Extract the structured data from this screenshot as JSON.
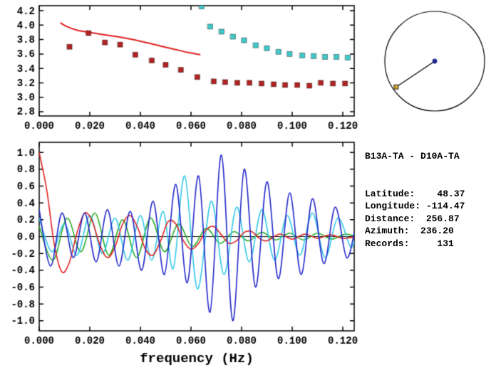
{
  "window": {
    "background": "#ffffff"
  },
  "station_info": {
    "pair": "B13A-TA - D10A-TA",
    "lines": [
      "Latitude:    48.37",
      "Longitude: -114.47",
      "Distance:  256.87",
      "Azimuth:  236.20",
      "Records:     131"
    ]
  },
  "azimuth_dial": {
    "azimuth_deg": 236.2,
    "circle_color": "#000000",
    "line_color": "#000000",
    "center_dot_color": "#202a8c",
    "end_marker_color": "#c9a227"
  },
  "chart_data": [
    {
      "id": "dispersion",
      "type": "scatter",
      "title": "",
      "xlabel": "",
      "ylabel": "",
      "xlim": [
        0,
        0.1245
      ],
      "ylim": [
        2.74,
        4.27
      ],
      "xticks": [
        0.0,
        0.02,
        0.04,
        0.06,
        0.08,
        0.1,
        0.12
      ],
      "xtick_labels": [
        "0.000",
        "0.020",
        "0.040",
        "0.060",
        "0.080",
        "0.100",
        "0.120"
      ],
      "yticks": [
        2.8,
        3.0,
        3.2,
        3.4,
        3.6,
        3.8,
        4.0,
        4.2
      ],
      "ytick_labels": [
        "2.8",
        "3.0",
        "3.2",
        "3.4",
        "3.6",
        "3.8",
        "4.0",
        "4.2"
      ],
      "series": [
        {
          "name": "reference-curve",
          "type": "line",
          "color": "#e02020",
          "width": 2,
          "points": [
            [
              0.0085,
              4.03
            ],
            [
              0.011,
              3.98
            ],
            [
              0.015,
              3.93
            ],
            [
              0.02,
              3.9
            ],
            [
              0.027,
              3.86
            ],
            [
              0.034,
              3.82
            ],
            [
              0.041,
              3.77
            ],
            [
              0.048,
              3.71
            ],
            [
              0.054,
              3.66
            ],
            [
              0.059,
              3.62
            ],
            [
              0.0635,
              3.59
            ]
          ]
        },
        {
          "name": "red-dispersion-squares",
          "type": "squares",
          "color": "#b22222",
          "points": [
            [
              0.012,
              3.7
            ],
            [
              0.0195,
              3.89
            ],
            [
              0.026,
              3.76
            ],
            [
              0.032,
              3.73
            ],
            [
              0.038,
              3.59
            ],
            [
              0.0445,
              3.51
            ],
            [
              0.05,
              3.45
            ],
            [
              0.056,
              3.38
            ],
            [
              0.0625,
              3.28
            ],
            [
              0.069,
              3.22
            ],
            [
              0.0735,
              3.21
            ],
            [
              0.0783,
              3.2
            ],
            [
              0.0831,
              3.2
            ],
            [
              0.0879,
              3.19
            ],
            [
              0.0927,
              3.18
            ],
            [
              0.0972,
              3.17
            ],
            [
              0.102,
              3.17
            ],
            [
              0.1068,
              3.16
            ],
            [
              0.1113,
              3.2
            ],
            [
              0.1161,
              3.19
            ],
            [
              0.1209,
              3.19
            ]
          ]
        },
        {
          "name": "cyan-dispersion-squares",
          "type": "squares",
          "color": "#3fc8c8",
          "points": [
            [
              0.0642,
              4.26
            ],
            [
              0.0676,
              3.98
            ],
            [
              0.0721,
              3.91
            ],
            [
              0.0766,
              3.84
            ],
            [
              0.081,
              3.79
            ],
            [
              0.0856,
              3.72
            ],
            [
              0.09,
              3.68
            ],
            [
              0.0946,
              3.63
            ],
            [
              0.099,
              3.6
            ],
            [
              0.104,
              3.58
            ],
            [
              0.1085,
              3.57
            ],
            [
              0.113,
              3.56
            ],
            [
              0.1175,
              3.56
            ],
            [
              0.122,
              3.55
            ]
          ]
        }
      ]
    },
    {
      "id": "waveforms",
      "type": "line",
      "title": "",
      "xlabel": "frequency (Hz)",
      "ylabel": "",
      "xlim": [
        0,
        0.1245
      ],
      "ylim": [
        -1.12,
        1.12
      ],
      "zero_line": true,
      "xticks": [
        0.0,
        0.02,
        0.04,
        0.06,
        0.08,
        0.1,
        0.12
      ],
      "xtick_labels": [
        "0.000",
        "0.020",
        "0.040",
        "0.060",
        "0.080",
        "0.100",
        "0.120"
      ],
      "yticks": [
        -1.0,
        -0.8,
        -0.6,
        -0.4,
        -0.2,
        0.0,
        0.2,
        0.4,
        0.6,
        0.8,
        1.0
      ],
      "ytick_labels": [
        "-1.0",
        "-0.8",
        "-0.6",
        "-0.4",
        "-0.2",
        "0.0",
        "0.2",
        "0.4",
        "0.6",
        "0.8",
        "1.0"
      ],
      "series": [
        {
          "name": "waveform-green",
          "type": "line",
          "color": "#1faa1f",
          "width": 1.5,
          "points": [
            [
              0.0,
              0.12
            ],
            [
              0.0055,
              -0.28
            ],
            [
              0.011,
              0.22
            ],
            [
              0.0165,
              -0.18
            ],
            [
              0.022,
              0.28
            ],
            [
              0.0275,
              -0.22
            ],
            [
              0.033,
              0.2
            ],
            [
              0.0385,
              -0.25
            ],
            [
              0.044,
              0.22
            ],
            [
              0.0495,
              -0.18
            ],
            [
              0.055,
              0.15
            ],
            [
              0.0605,
              -0.12
            ],
            [
              0.066,
              0.1
            ],
            [
              0.0715,
              -0.08
            ],
            [
              0.077,
              0.06
            ],
            [
              0.0825,
              -0.05
            ],
            [
              0.088,
              0.05
            ],
            [
              0.0935,
              -0.04
            ],
            [
              0.099,
              0.04
            ],
            [
              0.1045,
              -0.04
            ],
            [
              0.11,
              0.04
            ],
            [
              0.1155,
              -0.03
            ],
            [
              0.121,
              0.03
            ],
            [
              0.125,
              0.0
            ]
          ]
        },
        {
          "name": "waveform-cyan",
          "type": "line",
          "color": "#35c8e8",
          "width": 1.6,
          "points": [
            [
              0.0,
              0.22
            ],
            [
              0.005,
              -0.18
            ],
            [
              0.01,
              0.15
            ],
            [
              0.015,
              -0.22
            ],
            [
              0.02,
              0.25
            ],
            [
              0.025,
              -0.2
            ],
            [
              0.03,
              0.22
            ],
            [
              0.035,
              -0.28
            ],
            [
              0.04,
              0.25
            ],
            [
              0.0445,
              -0.28
            ],
            [
              0.049,
              0.3
            ],
            [
              0.053,
              -0.38
            ],
            [
              0.0575,
              0.72
            ],
            [
              0.0625,
              -0.62
            ],
            [
              0.068,
              0.42
            ],
            [
              0.073,
              -0.45
            ],
            [
              0.078,
              0.35
            ],
            [
              0.083,
              -0.3
            ],
            [
              0.088,
              0.32
            ],
            [
              0.093,
              -0.28
            ],
            [
              0.098,
              0.25
            ],
            [
              0.103,
              -0.22
            ],
            [
              0.108,
              0.28
            ],
            [
              0.113,
              -0.25
            ],
            [
              0.118,
              0.22
            ],
            [
              0.123,
              -0.12
            ],
            [
              0.125,
              0.0
            ]
          ]
        },
        {
          "name": "waveform-red",
          "type": "line",
          "color": "#e02020",
          "width": 1.6,
          "points": [
            [
              0.0,
              1.0
            ],
            [
              0.003,
              0.55
            ],
            [
              0.006,
              -0.1
            ],
            [
              0.009,
              -0.42
            ],
            [
              0.012,
              -0.3
            ],
            [
              0.015,
              0.05
            ],
            [
              0.018,
              0.28
            ],
            [
              0.021,
              0.18
            ],
            [
              0.024,
              -0.1
            ],
            [
              0.027,
              -0.25
            ],
            [
              0.03,
              -0.12
            ],
            [
              0.033,
              0.15
            ],
            [
              0.036,
              0.25
            ],
            [
              0.039,
              0.1
            ],
            [
              0.042,
              -0.15
            ],
            [
              0.045,
              -0.22
            ],
            [
              0.048,
              -0.05
            ],
            [
              0.051,
              0.18
            ],
            [
              0.054,
              0.15
            ],
            [
              0.057,
              -0.05
            ],
            [
              0.06,
              -0.15
            ],
            [
              0.063,
              -0.08
            ],
            [
              0.066,
              0.08
            ],
            [
              0.069,
              0.12
            ],
            [
              0.072,
              0.02
            ],
            [
              0.075,
              -0.08
            ],
            [
              0.078,
              -0.05
            ],
            [
              0.081,
              0.05
            ],
            [
              0.084,
              0.06
            ],
            [
              0.087,
              -0.02
            ],
            [
              0.09,
              -0.05
            ],
            [
              0.095,
              0.03
            ],
            [
              0.1,
              -0.03
            ],
            [
              0.105,
              0.03
            ],
            [
              0.11,
              -0.02
            ],
            [
              0.115,
              0.02
            ],
            [
              0.12,
              -0.02
            ],
            [
              0.125,
              0.0
            ]
          ]
        },
        {
          "name": "waveform-blue",
          "type": "line",
          "color": "#2026c8",
          "width": 1.6,
          "points": [
            [
              0.0,
              0.32
            ],
            [
              0.0045,
              -0.35
            ],
            [
              0.009,
              0.28
            ],
            [
              0.0135,
              -0.25
            ],
            [
              0.018,
              0.28
            ],
            [
              0.0225,
              -0.3
            ],
            [
              0.027,
              0.32
            ],
            [
              0.0315,
              -0.35
            ],
            [
              0.036,
              0.3
            ],
            [
              0.0405,
              -0.4
            ],
            [
              0.045,
              0.42
            ],
            [
              0.0495,
              -0.45
            ],
            [
              0.054,
              0.62
            ],
            [
              0.0585,
              -0.55
            ],
            [
              0.063,
              0.72
            ],
            [
              0.0675,
              -0.9
            ],
            [
              0.072,
              0.97
            ],
            [
              0.0765,
              -1.0
            ],
            [
              0.081,
              0.8
            ],
            [
              0.0855,
              -0.6
            ],
            [
              0.09,
              0.65
            ],
            [
              0.0945,
              -0.5
            ],
            [
              0.099,
              0.52
            ],
            [
              0.1035,
              -0.45
            ],
            [
              0.108,
              0.45
            ],
            [
              0.1125,
              -0.32
            ],
            [
              0.117,
              0.35
            ],
            [
              0.1215,
              -0.25
            ],
            [
              0.125,
              0.12
            ]
          ]
        }
      ]
    }
  ]
}
